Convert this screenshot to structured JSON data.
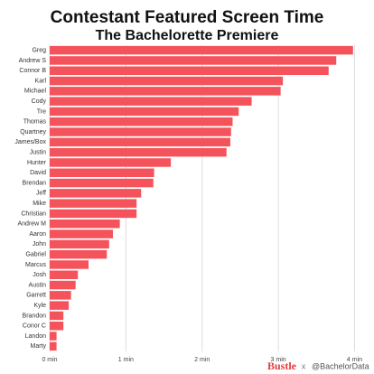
{
  "chart_data": {
    "type": "hbar",
    "title": "Contestant Featured Screen Time",
    "subtitle": "The Bachelorette Premiere",
    "categories": [
      "Greg",
      "Andrew S",
      "Connor B",
      "Karl",
      "Michael",
      "Cody",
      "Tre",
      "Thomas",
      "Quartney",
      "James/Box",
      "Justin",
      "Hunter",
      "David",
      "Brendan",
      "Jeff",
      "Mike",
      "Christian",
      "Andrew M",
      "Aaron",
      "John",
      "Gabriel",
      "Marcus",
      "Josh",
      "Austin",
      "Garrett",
      "Kyle",
      "Brandon",
      "Conor C",
      "Landon",
      "Marty"
    ],
    "values": [
      3.98,
      3.76,
      3.66,
      3.06,
      3.03,
      2.65,
      2.48,
      2.4,
      2.38,
      2.37,
      2.32,
      1.59,
      1.37,
      1.36,
      1.2,
      1.14,
      1.14,
      0.92,
      0.83,
      0.78,
      0.75,
      0.51,
      0.37,
      0.34,
      0.28,
      0.25,
      0.18,
      0.18,
      0.09,
      0.09
    ],
    "color": "#f4535b",
    "xlim": [
      0,
      4.03
    ],
    "xticks": [
      {
        "value": 0,
        "label": "0 min"
      },
      {
        "value": 1,
        "label": "1 min"
      },
      {
        "value": 2,
        "label": "2 min"
      },
      {
        "value": 3,
        "label": "3 min"
      },
      {
        "value": 4,
        "label": "4 min"
      }
    ],
    "grid": true,
    "footer": {
      "brand": "Bustle",
      "separator": "x",
      "handle": "@BachelorData"
    }
  }
}
